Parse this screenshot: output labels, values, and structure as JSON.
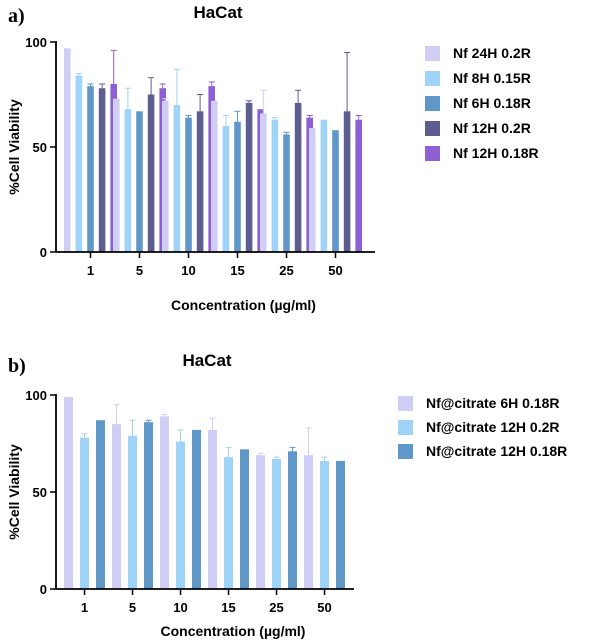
{
  "chart_data": [
    {
      "type": "bar",
      "panel_label": "a)",
      "title": "HaCat",
      "xlabel": "Concentration (µg/ml)",
      "ylabel": "%Cell Viability",
      "ylim": [
        0,
        100
      ],
      "yticks": [
        0,
        50,
        100
      ],
      "grid": false,
      "legend_position": "right",
      "categories": [
        "1",
        "5",
        "10",
        "15",
        "25",
        "50"
      ],
      "series": [
        {
          "name": "Nf 24H 0.2R",
          "color": "#cfcff5",
          "values": [
            97,
            73,
            72,
            72,
            66,
            59
          ],
          "errors": [
            0,
            0,
            1,
            0,
            11,
            0
          ]
        },
        {
          "name": "Nf 8H 0.15R",
          "color": "#9fd3f7",
          "values": [
            84,
            68,
            70,
            60,
            63,
            63
          ],
          "errors": [
            1,
            10,
            17,
            5,
            1,
            0
          ]
        },
        {
          "name": "Nf 6H 0.18R",
          "color": "#5f97c8",
          "values": [
            79,
            67,
            64,
            62,
            56,
            58
          ],
          "errors": [
            1,
            0,
            1,
            5,
            1,
            0
          ]
        },
        {
          "name": "Nf 12H 0.2R",
          "color": "#5e5d8f",
          "values": [
            78,
            75,
            67,
            71,
            71,
            67
          ],
          "errors": [
            2,
            8,
            8,
            1,
            6,
            28
          ]
        },
        {
          "name": "Nf 12H 0.18R",
          "color": "#8e5fd2",
          "values": [
            80,
            78,
            79,
            68,
            64,
            63
          ],
          "errors": [
            16,
            2,
            2,
            0,
            1,
            2
          ]
        }
      ]
    },
    {
      "type": "bar",
      "panel_label": "b)",
      "title": "HaCat",
      "xlabel": "Concentration (µg/ml)",
      "ylabel": "%Cell Viability",
      "ylim": [
        0,
        100
      ],
      "yticks": [
        0,
        50,
        100
      ],
      "grid": false,
      "legend_position": "right",
      "categories": [
        "1",
        "5",
        "10",
        "15",
        "25",
        "50"
      ],
      "series": [
        {
          "name": "Nf@citrate 6H 0.18R",
          "color": "#cfcff5",
          "values": [
            99,
            85,
            89,
            82,
            69,
            69
          ],
          "errors": [
            0,
            10,
            1,
            6,
            1,
            14
          ]
        },
        {
          "name": "Nf@citrate 12H 0.2R",
          "color": "#9fd3f7",
          "values": [
            78,
            79,
            76,
            68,
            67,
            66
          ],
          "errors": [
            2,
            8,
            6,
            5,
            1,
            2
          ]
        },
        {
          "name": "Nf@citrate 12H 0.18R",
          "color": "#5f97c8",
          "values": [
            87,
            86,
            82,
            72,
            71,
            66
          ],
          "errors": [
            0,
            1,
            0,
            0,
            2,
            0
          ]
        }
      ]
    }
  ]
}
